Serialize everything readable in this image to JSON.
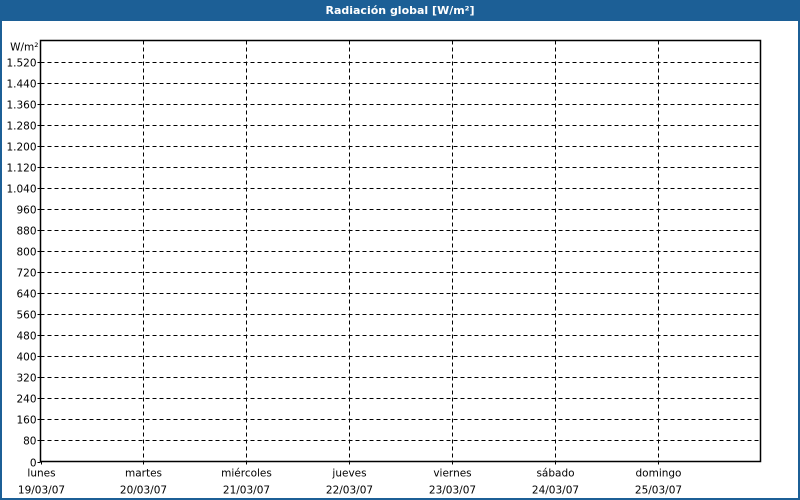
{
  "window": {
    "title": "Radiación global [W/m²]",
    "accent_color": "#1c5f96"
  },
  "chart_data": {
    "type": "line",
    "title": "Radiación global [W/m²]",
    "ylabel": "W/m²",
    "xlabel": "",
    "ylim": [
      0,
      1600
    ],
    "yticks": [
      0,
      80,
      160,
      240,
      320,
      400,
      480,
      560,
      640,
      720,
      800,
      880,
      960,
      1040,
      1120,
      1200,
      1280,
      1360,
      1440,
      1520
    ],
    "ytick_labels": [
      "0",
      "80",
      "160",
      "240",
      "320",
      "400",
      "480",
      "560",
      "640",
      "720",
      "800",
      "880",
      "960",
      "1.040",
      "1.120",
      "1.200",
      "1.280",
      "1.360",
      "1.440",
      "1.520"
    ],
    "x_categories": [
      {
        "day": "lunes",
        "date": "19/03/07"
      },
      {
        "day": "martes",
        "date": "20/03/07"
      },
      {
        "day": "miércoles",
        "date": "21/03/07"
      },
      {
        "day": "jueves",
        "date": "22/03/07"
      },
      {
        "day": "viernes",
        "date": "23/03/07"
      },
      {
        "day": "sábado",
        "date": "24/03/07"
      },
      {
        "day": "domingo",
        "date": "25/03/07"
      }
    ],
    "grid": true,
    "grid_style": "dashed",
    "series": []
  }
}
